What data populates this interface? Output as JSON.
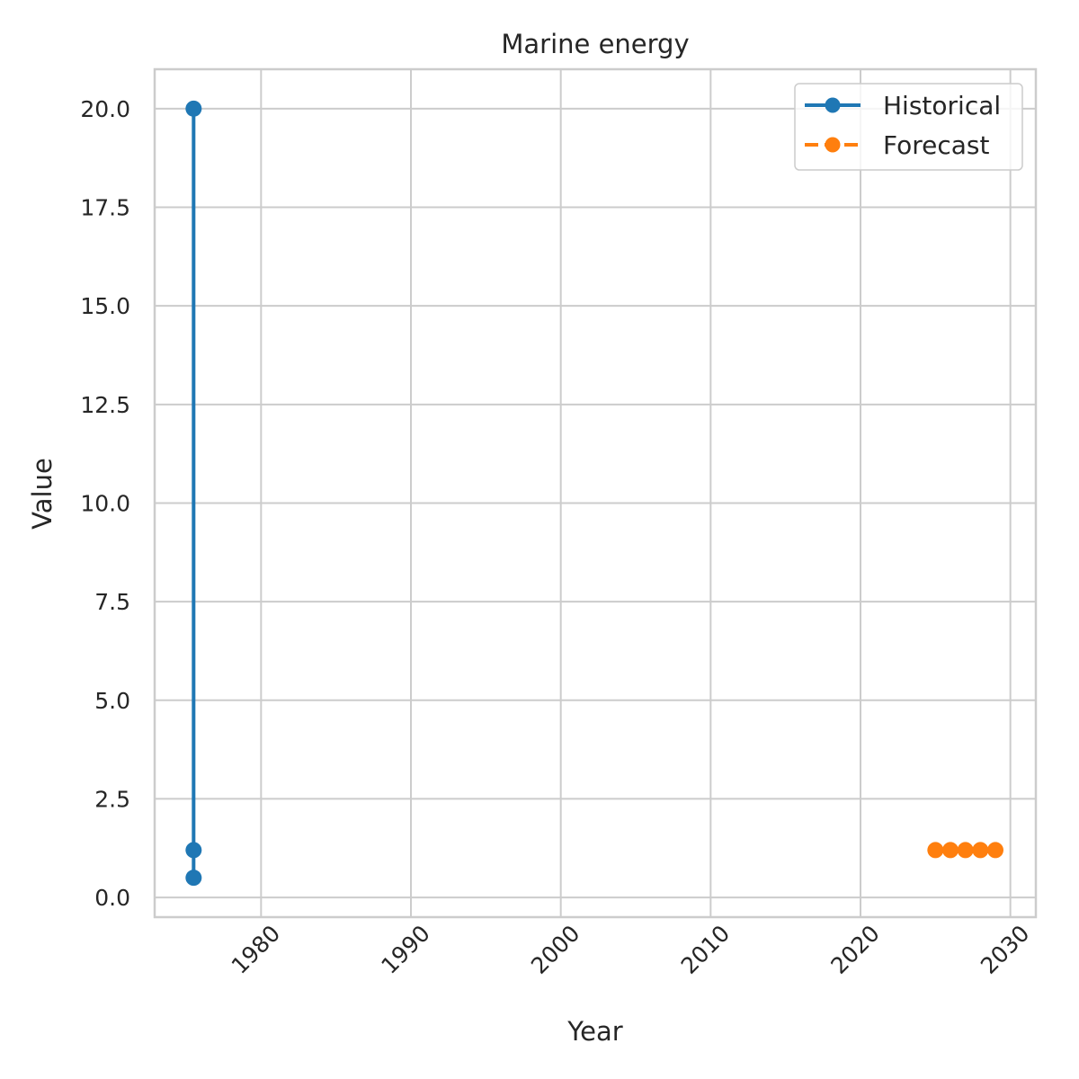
{
  "chart_data": {
    "type": "line",
    "title": "Marine energy",
    "xlabel": "Year",
    "ylabel": "Value",
    "xlim": [
      1972.9,
      2031.7
    ],
    "ylim": [
      -0.5,
      21.0
    ],
    "x_ticks": [
      1980,
      1990,
      2000,
      2010,
      2020,
      2030
    ],
    "x_tick_labels": [
      "1980",
      "1990",
      "2000",
      "2010",
      "2020",
      "2030"
    ],
    "y_ticks": [
      0,
      2.5,
      5,
      7.5,
      10,
      12.5,
      15,
      17.5,
      20
    ],
    "y_tick_labels": [
      "0.0",
      "2.5",
      "5.0",
      "7.5",
      "10.0",
      "12.5",
      "15.0",
      "17.5",
      "20.0"
    ],
    "grid": true,
    "legend_position": "top-right",
    "series": [
      {
        "name": "Historical",
        "color": "#1f77b4",
        "line_style": "solid",
        "marker": "circle",
        "x": [
          1975.5,
          1975.5,
          1975.5
        ],
        "y": [
          20.0,
          1.2,
          0.5
        ]
      },
      {
        "name": "Forecast",
        "color": "#ff7f0e",
        "line_style": "dashed",
        "marker": "circle",
        "x": [
          2025,
          2026,
          2027,
          2028,
          2029
        ],
        "y": [
          1.2,
          1.2,
          1.2,
          1.2,
          1.2
        ]
      }
    ]
  }
}
